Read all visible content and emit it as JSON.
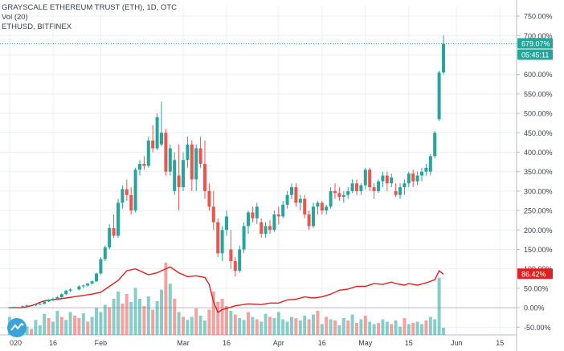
{
  "header": {
    "title": "GRAYSCALE ETHEREUM TRUST (ETH), 1D, OTC",
    "volume_label": "Vol (20)",
    "compare_label": "ETHUSD, BITFINEX"
  },
  "colors": {
    "up": "#26a69a",
    "down": "#ef5350",
    "compare_line": "#e02020",
    "last_price_bg": "#26a69a",
    "compare_badge_bg": "#e02020",
    "axis_text": "#3a3f4a",
    "grid": "#eceff2"
  },
  "price_badges": {
    "last_value": "679.07%",
    "countdown": "05:45:11",
    "compare_value": "86.42%"
  },
  "chart_data": {
    "type": "candlestick",
    "y_unit": "% change",
    "ylim": [
      -70,
      775
    ],
    "y_ticks": [
      "750.00%",
      "700.00%",
      "650.00%",
      "600.00%",
      "550.00%",
      "500.00%",
      "450.00%",
      "400.00%",
      "350.00%",
      "300.00%",
      "250.00%",
      "200.00%",
      "150.00%",
      "100.00%",
      "50.00%",
      "0.00%",
      "-50.00%"
    ],
    "y_tick_values": [
      750,
      700,
      650,
      600,
      550,
      500,
      450,
      400,
      350,
      300,
      250,
      200,
      150,
      100,
      50,
      0,
      -50
    ],
    "x_ticks": [
      {
        "label": "020",
        "i": 0
      },
      {
        "label": "16",
        "i": 10
      },
      {
        "label": "Feb",
        "i": 21
      },
      {
        "label": "Mar",
        "i": 40
      },
      {
        "label": "16",
        "i": 50
      },
      {
        "label": "Apr",
        "i": 62
      },
      {
        "label": "16",
        "i": 72
      },
      {
        "label": "May",
        "i": 82
      },
      {
        "label": "15",
        "i": 92
      },
      {
        "label": "Jun",
        "i": 103
      },
      {
        "label": "15",
        "i": 113
      }
    ],
    "n_slots": 119,
    "candles": [
      [
        0,
        0,
        2,
        -2,
        1
      ],
      [
        1,
        0,
        3,
        -1,
        2
      ],
      [
        3,
        2,
        6,
        0,
        4
      ],
      [
        4,
        4,
        8,
        2,
        6
      ],
      [
        6,
        6,
        10,
        4,
        9
      ],
      [
        7,
        9,
        12,
        7,
        10
      ],
      [
        8,
        10,
        18,
        8,
        16
      ],
      [
        9,
        16,
        22,
        14,
        19
      ],
      [
        10,
        19,
        26,
        17,
        23
      ],
      [
        11,
        23,
        30,
        20,
        27
      ],
      [
        12,
        27,
        38,
        25,
        35
      ],
      [
        13,
        35,
        46,
        32,
        44
      ],
      [
        14,
        44,
        50,
        40,
        47
      ],
      [
        16,
        47,
        58,
        45,
        55
      ],
      [
        17,
        55,
        60,
        50,
        57
      ],
      [
        18,
        57,
        64,
        54,
        62
      ],
      [
        19,
        62,
        70,
        60,
        68
      ],
      [
        20,
        68,
        90,
        66,
        88
      ],
      [
        21,
        88,
        130,
        85,
        125
      ],
      [
        22,
        125,
        160,
        120,
        155
      ],
      [
        23,
        155,
        215,
        150,
        205
      ],
      [
        24,
        205,
        240,
        180,
        185
      ],
      [
        25,
        185,
        280,
        180,
        270
      ],
      [
        26,
        270,
        315,
        255,
        305
      ],
      [
        27,
        305,
        330,
        275,
        290
      ],
      [
        28,
        290,
        310,
        240,
        250
      ],
      [
        29,
        250,
        360,
        245,
        355
      ],
      [
        30,
        355,
        380,
        340,
        370
      ],
      [
        31,
        370,
        390,
        355,
        365
      ],
      [
        32,
        365,
        440,
        360,
        430
      ],
      [
        33,
        430,
        470,
        400,
        410
      ],
      [
        34,
        410,
        500,
        405,
        490
      ],
      [
        35,
        420,
        530,
        415,
        450
      ],
      [
        36,
        450,
        460,
        340,
        350
      ],
      [
        37,
        350,
        420,
        340,
        410
      ],
      [
        38,
        300,
        400,
        290,
        380
      ],
      [
        39,
        340,
        420,
        250,
        310
      ],
      [
        40,
        310,
        400,
        300,
        380
      ],
      [
        41,
        380,
        440,
        360,
        420
      ],
      [
        42,
        420,
        430,
        300,
        330
      ],
      [
        43,
        330,
        420,
        300,
        410
      ],
      [
        44,
        410,
        440,
        360,
        370
      ],
      [
        45,
        370,
        430,
        280,
        300
      ],
      [
        46,
        300,
        320,
        250,
        260
      ],
      [
        47,
        260,
        300,
        200,
        220
      ],
      [
        48,
        220,
        230,
        130,
        140
      ],
      [
        49,
        140,
        210,
        120,
        200
      ],
      [
        50,
        200,
        250,
        185,
        235
      ],
      [
        51,
        150,
        200,
        100,
        120
      ],
      [
        52,
        120,
        130,
        80,
        95
      ],
      [
        53,
        95,
        160,
        90,
        150
      ],
      [
        54,
        150,
        220,
        140,
        210
      ],
      [
        55,
        210,
        250,
        190,
        245
      ],
      [
        56,
        245,
        260,
        220,
        230
      ],
      [
        57,
        230,
        270,
        215,
        260
      ],
      [
        58,
        220,
        230,
        180,
        190
      ],
      [
        59,
        190,
        220,
        180,
        210
      ],
      [
        60,
        210,
        225,
        190,
        200
      ],
      [
        61,
        200,
        250,
        195,
        240
      ],
      [
        62,
        240,
        260,
        215,
        235
      ],
      [
        63,
        235,
        275,
        230,
        265
      ],
      [
        64,
        265,
        300,
        255,
        290
      ],
      [
        65,
        290,
        320,
        280,
        310
      ],
      [
        66,
        310,
        320,
        260,
        270
      ],
      [
        67,
        270,
        290,
        250,
        280
      ],
      [
        68,
        280,
        290,
        230,
        240
      ],
      [
        69,
        240,
        250,
        200,
        210
      ],
      [
        70,
        210,
        270,
        205,
        260
      ],
      [
        71,
        260,
        275,
        240,
        270
      ],
      [
        72,
        270,
        275,
        240,
        250
      ],
      [
        73,
        250,
        265,
        240,
        260
      ],
      [
        74,
        260,
        310,
        255,
        300
      ],
      [
        75,
        300,
        320,
        280,
        295
      ],
      [
        76,
        295,
        310,
        275,
        285
      ],
      [
        77,
        285,
        300,
        270,
        290
      ],
      [
        78,
        290,
        310,
        280,
        300
      ],
      [
        79,
        300,
        330,
        295,
        320
      ],
      [
        80,
        320,
        330,
        290,
        300
      ],
      [
        81,
        300,
        320,
        290,
        315
      ],
      [
        82,
        315,
        360,
        305,
        355
      ],
      [
        83,
        355,
        360,
        300,
        310
      ],
      [
        84,
        310,
        320,
        280,
        300
      ],
      [
        85,
        300,
        330,
        295,
        325
      ],
      [
        86,
        325,
        350,
        310,
        340
      ],
      [
        87,
        340,
        350,
        300,
        320
      ],
      [
        88,
        320,
        345,
        310,
        335
      ],
      [
        89,
        300,
        320,
        285,
        290
      ],
      [
        90,
        290,
        320,
        280,
        310
      ],
      [
        91,
        310,
        330,
        290,
        320
      ],
      [
        92,
        320,
        350,
        310,
        345
      ],
      [
        93,
        345,
        355,
        310,
        325
      ],
      [
        94,
        325,
        350,
        315,
        340
      ],
      [
        95,
        340,
        360,
        325,
        350
      ],
      [
        96,
        350,
        370,
        340,
        360
      ],
      [
        97,
        350,
        395,
        340,
        390
      ],
      [
        98,
        390,
        455,
        385,
        450
      ],
      [
        99,
        485,
        610,
        480,
        605
      ],
      [
        100,
        605,
        700,
        600,
        679
      ]
    ],
    "volume": [
      [
        0,
        30,
        "up"
      ],
      [
        1,
        18,
        "up"
      ],
      [
        2,
        12,
        "down"
      ],
      [
        3,
        20,
        "up"
      ],
      [
        4,
        14,
        "up"
      ],
      [
        5,
        10,
        "down"
      ],
      [
        6,
        25,
        "up"
      ],
      [
        7,
        16,
        "up"
      ],
      [
        8,
        35,
        "up"
      ],
      [
        9,
        28,
        "down"
      ],
      [
        10,
        22,
        "up"
      ],
      [
        11,
        40,
        "up"
      ],
      [
        12,
        30,
        "down"
      ],
      [
        13,
        25,
        "up"
      ],
      [
        14,
        38,
        "up"
      ],
      [
        15,
        32,
        "down"
      ],
      [
        16,
        28,
        "down"
      ],
      [
        17,
        36,
        "up"
      ],
      [
        18,
        22,
        "down"
      ],
      [
        19,
        30,
        "up"
      ],
      [
        20,
        45,
        "up"
      ],
      [
        21,
        38,
        "up"
      ],
      [
        22,
        50,
        "up"
      ],
      [
        23,
        46,
        "down"
      ],
      [
        24,
        60,
        "up"
      ],
      [
        25,
        72,
        "up"
      ],
      [
        26,
        52,
        "down"
      ],
      [
        27,
        68,
        "down"
      ],
      [
        28,
        55,
        "up"
      ],
      [
        29,
        78,
        "up"
      ],
      [
        30,
        60,
        "up"
      ],
      [
        31,
        48,
        "down"
      ],
      [
        32,
        64,
        "up"
      ],
      [
        33,
        42,
        "down"
      ],
      [
        34,
        56,
        "up"
      ],
      [
        35,
        75,
        "up"
      ],
      [
        36,
        120,
        "down"
      ],
      [
        37,
        85,
        "up"
      ],
      [
        38,
        60,
        "down"
      ],
      [
        39,
        38,
        "up"
      ],
      [
        40,
        30,
        "down"
      ],
      [
        41,
        25,
        "up"
      ],
      [
        42,
        30,
        "up"
      ],
      [
        43,
        44,
        "down"
      ],
      [
        44,
        32,
        "up"
      ],
      [
        45,
        24,
        "up"
      ],
      [
        46,
        42,
        "down"
      ],
      [
        47,
        72,
        "down"
      ],
      [
        48,
        55,
        "down"
      ],
      [
        49,
        60,
        "down"
      ],
      [
        50,
        48,
        "down"
      ],
      [
        51,
        40,
        "up"
      ],
      [
        52,
        34,
        "down"
      ],
      [
        53,
        28,
        "up"
      ],
      [
        54,
        25,
        "up"
      ],
      [
        55,
        38,
        "down"
      ],
      [
        56,
        30,
        "up"
      ],
      [
        57,
        26,
        "down"
      ],
      [
        58,
        22,
        "up"
      ],
      [
        59,
        35,
        "up"
      ],
      [
        60,
        30,
        "down"
      ],
      [
        61,
        28,
        "up"
      ],
      [
        62,
        38,
        "up"
      ],
      [
        63,
        26,
        "up"
      ],
      [
        64,
        22,
        "up"
      ],
      [
        65,
        30,
        "up"
      ],
      [
        66,
        28,
        "down"
      ],
      [
        67,
        24,
        "up"
      ],
      [
        68,
        32,
        "up"
      ],
      [
        69,
        26,
        "down"
      ],
      [
        70,
        34,
        "up"
      ],
      [
        71,
        40,
        "down"
      ],
      [
        72,
        18,
        "up"
      ],
      [
        73,
        30,
        "down"
      ],
      [
        74,
        26,
        "up"
      ],
      [
        75,
        24,
        "down"
      ],
      [
        76,
        16,
        "up"
      ],
      [
        77,
        28,
        "up"
      ],
      [
        78,
        24,
        "down"
      ],
      [
        79,
        34,
        "up"
      ],
      [
        80,
        20,
        "down"
      ],
      [
        81,
        26,
        "up"
      ],
      [
        82,
        32,
        "down"
      ],
      [
        83,
        22,
        "up"
      ],
      [
        84,
        18,
        "up"
      ],
      [
        85,
        20,
        "down"
      ],
      [
        86,
        26,
        "up"
      ],
      [
        87,
        22,
        "up"
      ],
      [
        88,
        18,
        "down"
      ],
      [
        89,
        24,
        "up"
      ],
      [
        90,
        14,
        "up"
      ],
      [
        91,
        28,
        "down"
      ],
      [
        92,
        18,
        "up"
      ],
      [
        93,
        20,
        "down"
      ],
      [
        94,
        22,
        "up"
      ],
      [
        95,
        18,
        "up"
      ],
      [
        96,
        24,
        "down"
      ],
      [
        97,
        30,
        "up"
      ],
      [
        98,
        26,
        "up"
      ],
      [
        99,
        95,
        "up"
      ],
      [
        100,
        12,
        "up"
      ]
    ],
    "compare_series": [
      [
        0,
        0
      ],
      [
        3,
        0
      ],
      [
        5,
        5
      ],
      [
        8,
        18
      ],
      [
        11,
        22
      ],
      [
        13,
        25
      ],
      [
        16,
        30
      ],
      [
        19,
        35
      ],
      [
        21,
        40
      ],
      [
        23,
        55
      ],
      [
        25,
        70
      ],
      [
        27,
        95
      ],
      [
        29,
        100
      ],
      [
        30,
        95
      ],
      [
        32,
        85
      ],
      [
        34,
        90
      ],
      [
        35,
        95
      ],
      [
        37,
        105
      ],
      [
        39,
        90
      ],
      [
        41,
        80
      ],
      [
        43,
        82
      ],
      [
        45,
        78
      ],
      [
        46,
        60
      ],
      [
        47,
        15
      ],
      [
        48,
        -12
      ],
      [
        49,
        -5
      ],
      [
        50,
        -2
      ],
      [
        52,
        5
      ],
      [
        55,
        10
      ],
      [
        58,
        8
      ],
      [
        60,
        12
      ],
      [
        62,
        12
      ],
      [
        64,
        20
      ],
      [
        66,
        22
      ],
      [
        68,
        28
      ],
      [
        70,
        25
      ],
      [
        72,
        28
      ],
      [
        74,
        35
      ],
      [
        76,
        45
      ],
      [
        78,
        48
      ],
      [
        80,
        55
      ],
      [
        82,
        55
      ],
      [
        84,
        62
      ],
      [
        86,
        60
      ],
      [
        88,
        66
      ],
      [
        89,
        62
      ],
      [
        91,
        58
      ],
      [
        92,
        62
      ],
      [
        94,
        58
      ],
      [
        96,
        64
      ],
      [
        98,
        72
      ],
      [
        99,
        95
      ],
      [
        100,
        86.42
      ]
    ]
  }
}
